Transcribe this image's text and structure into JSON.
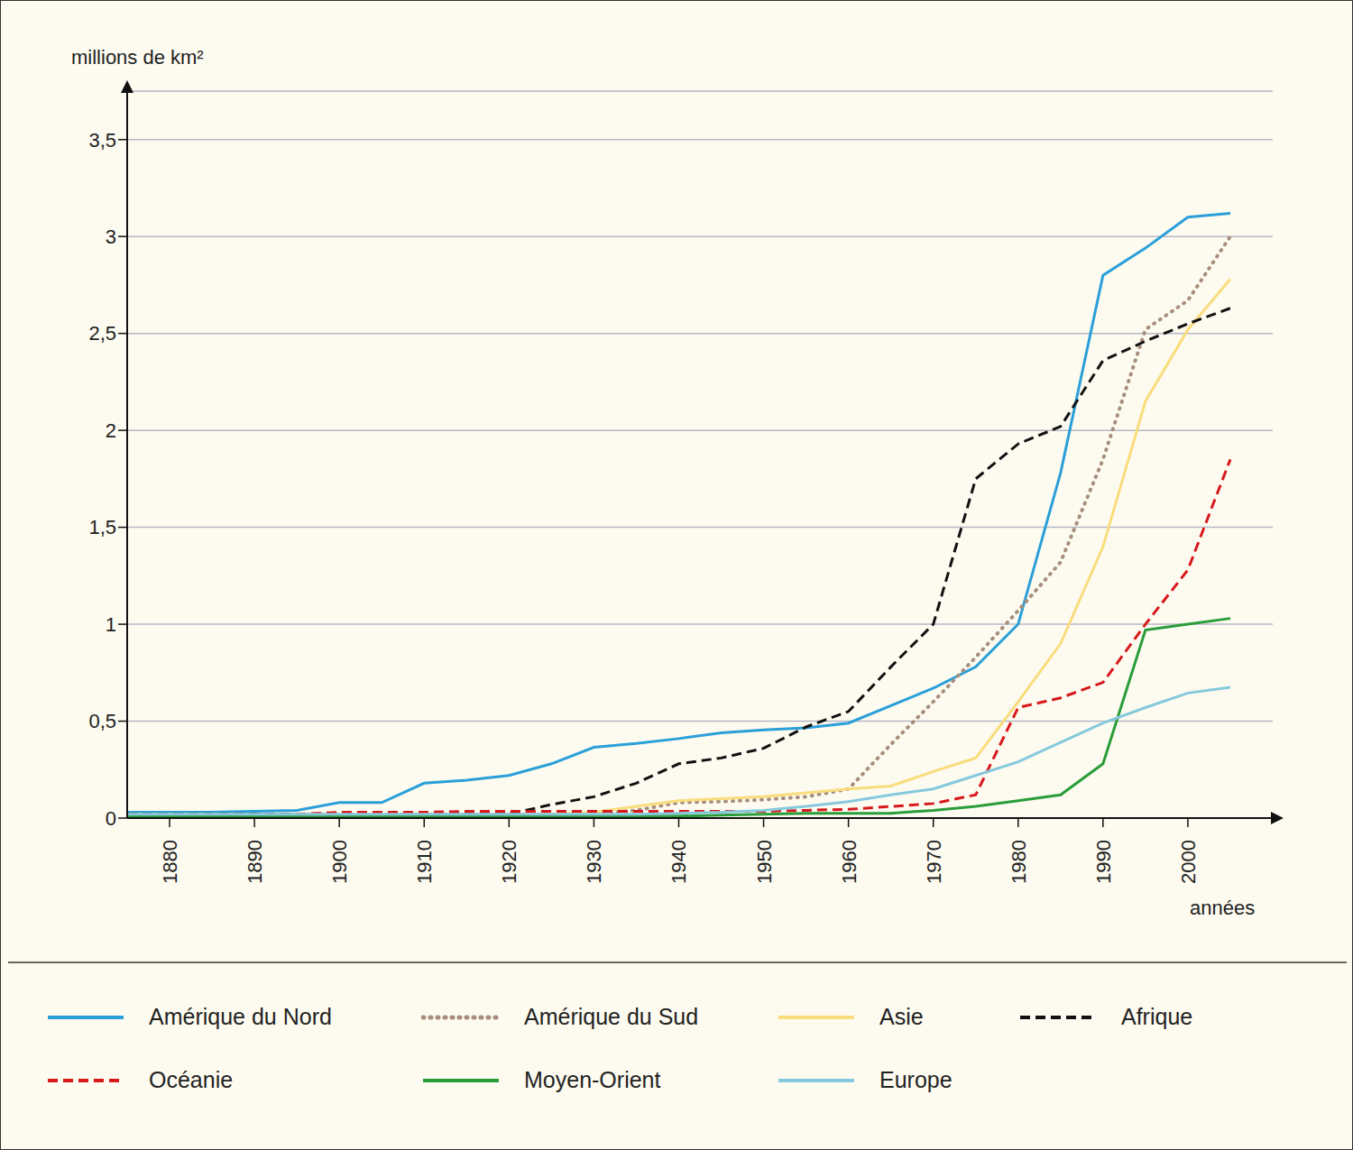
{
  "chart_data": {
    "type": "line",
    "y_label": "millions de km²",
    "x_label": "années",
    "x": [
      1875,
      1880,
      1885,
      1890,
      1895,
      1900,
      1905,
      1910,
      1915,
      1920,
      1925,
      1930,
      1935,
      1940,
      1945,
      1950,
      1955,
      1960,
      1965,
      1970,
      1975,
      1980,
      1985,
      1990,
      1995,
      2000,
      2005
    ],
    "xlim": [
      1875,
      2010
    ],
    "xticks": [
      1880,
      1890,
      1900,
      1910,
      1920,
      1930,
      1940,
      1950,
      1960,
      1970,
      1980,
      1990,
      2000
    ],
    "ylim": [
      0,
      3.75
    ],
    "yticks": [
      0,
      {
        "value": 0.5,
        "label": "0,5"
      },
      1,
      {
        "value": 1.5,
        "label": "1,5"
      },
      2,
      {
        "value": 2.5,
        "label": "2,5"
      },
      3,
      {
        "value": 3.5,
        "label": "3,5"
      }
    ],
    "grid": true,
    "legend": "bottom",
    "series": [
      {
        "name": "Amérique du Nord",
        "color": "#2a9fd8",
        "line_style": "solid",
        "values": [
          0.03,
          0.03,
          0.03,
          0.035,
          0.04,
          0.08,
          0.08,
          0.18,
          0.195,
          0.22,
          0.28,
          0.365,
          0.385,
          0.41,
          0.44,
          0.455,
          0.465,
          0.49,
          0.58,
          0.67,
          0.78,
          1.0,
          1.78,
          2.8,
          2.94,
          3.1,
          3.12
        ]
      },
      {
        "name": "Amérique du Sud",
        "color": "#a88f7d",
        "line_style": "dotted",
        "values": [
          0.02,
          0.02,
          0.02,
          0.02,
          0.02,
          0.02,
          0.02,
          0.02,
          0.02,
          0.02,
          0.02,
          0.02,
          0.04,
          0.08,
          0.085,
          0.095,
          0.11,
          0.15,
          0.38,
          0.6,
          0.83,
          1.07,
          1.32,
          1.85,
          2.52,
          2.67,
          3.0
        ]
      },
      {
        "name": "Asie",
        "color": "#f9dc7c",
        "line_style": "solid",
        "values": [
          0.02,
          0.02,
          0.02,
          0.02,
          0.02,
          0.02,
          0.02,
          0.02,
          0.02,
          0.02,
          0.02,
          0.03,
          0.06,
          0.09,
          0.1,
          0.11,
          0.13,
          0.15,
          0.165,
          0.24,
          0.31,
          0.6,
          0.9,
          1.4,
          2.15,
          2.52,
          2.78
        ]
      },
      {
        "name": "Afrique",
        "color": "#111111",
        "line_style": "dashed",
        "values": [
          0.02,
          0.02,
          0.02,
          0.02,
          0.02,
          0.02,
          0.02,
          0.02,
          0.02,
          0.02,
          0.07,
          0.11,
          0.18,
          0.28,
          0.31,
          0.36,
          0.47,
          0.55,
          0.78,
          1.0,
          1.75,
          1.93,
          2.02,
          2.36,
          2.46,
          2.55,
          2.63
        ]
      },
      {
        "name": "Océanie",
        "color": "#d7191c",
        "line_style": "dashed",
        "values": [
          0.02,
          0.02,
          0.02,
          0.02,
          0.02,
          0.03,
          0.03,
          0.03,
          0.035,
          0.035,
          0.035,
          0.035,
          0.035,
          0.035,
          0.035,
          0.035,
          0.04,
          0.045,
          0.06,
          0.075,
          0.12,
          0.57,
          0.62,
          0.7,
          1.0,
          1.28,
          1.85
        ]
      },
      {
        "name": "Moyen-Orient",
        "color": "#2a9d3a",
        "line_style": "solid",
        "values": [
          0.01,
          0.01,
          0.01,
          0.01,
          0.01,
          0.01,
          0.01,
          0.01,
          0.01,
          0.01,
          0.01,
          0.01,
          0.01,
          0.01,
          0.015,
          0.02,
          0.025,
          0.025,
          0.025,
          0.04,
          0.06,
          0.09,
          0.12,
          0.28,
          0.97,
          1.0,
          1.03
        ]
      },
      {
        "name": "Europe",
        "color": "#86c9dd",
        "line_style": "solid",
        "values": [
          0.02,
          0.02,
          0.02,
          0.02,
          0.02,
          0.02,
          0.02,
          0.02,
          0.02,
          0.02,
          0.02,
          0.02,
          0.02,
          0.025,
          0.03,
          0.04,
          0.06,
          0.085,
          0.12,
          0.15,
          0.22,
          0.29,
          0.39,
          0.49,
          0.57,
          0.645,
          0.675
        ]
      }
    ]
  }
}
